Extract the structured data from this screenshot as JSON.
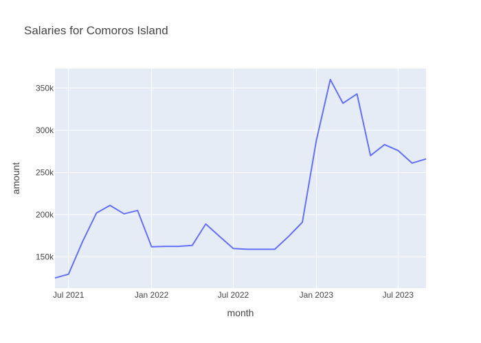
{
  "chart_data": {
    "type": "line",
    "title": "Salaries for Comoros Island",
    "xlabel": "month",
    "ylabel": "amount",
    "x_ticks": [
      {
        "date": "2021-07-01",
        "label": "Jul 2021"
      },
      {
        "date": "2022-01-01",
        "label": "Jan 2022"
      },
      {
        "date": "2022-07-01",
        "label": "Jul 2022"
      },
      {
        "date": "2023-01-01",
        "label": "Jan 2023"
      },
      {
        "date": "2023-07-01",
        "label": "Jul 2023"
      }
    ],
    "y_ticks": [
      {
        "value": 150000,
        "label": "150k"
      },
      {
        "value": 200000,
        "label": "200k"
      },
      {
        "value": 250000,
        "label": "250k"
      },
      {
        "value": 300000,
        "label": "300k"
      },
      {
        "value": 350000,
        "label": "350k"
      }
    ],
    "xlim": [
      "2021-06-01",
      "2023-09-01"
    ],
    "ylim": [
      113000,
      373000
    ],
    "grid": true,
    "line_color": "#636efa",
    "plot_bg": "#e5ecf6",
    "series": [
      {
        "x": [
          "2021-06-01",
          "2021-07-01",
          "2021-08-01",
          "2021-09-01",
          "2021-10-01",
          "2021-11-01",
          "2021-12-01",
          "2022-01-01",
          "2022-02-01",
          "2022-03-01",
          "2022-04-01",
          "2022-05-01",
          "2022-06-01",
          "2022-07-01",
          "2022-08-01",
          "2022-09-01",
          "2022-10-01",
          "2022-11-01",
          "2022-12-01",
          "2023-01-01",
          "2023-02-01",
          "2023-03-01",
          "2023-04-01",
          "2023-05-01",
          "2023-06-01",
          "2023-07-01",
          "2023-08-01",
          "2023-09-01"
        ],
        "values": [
          125000,
          129500,
          168000,
          202000,
          211000,
          201000,
          205000,
          162000,
          162500,
          162500,
          163500,
          189000,
          174000,
          160000,
          159000,
          159000,
          159000,
          174500,
          191000,
          288000,
          360000,
          332000,
          343000,
          270000,
          283000,
          276000,
          261000,
          266000
        ]
      }
    ]
  }
}
